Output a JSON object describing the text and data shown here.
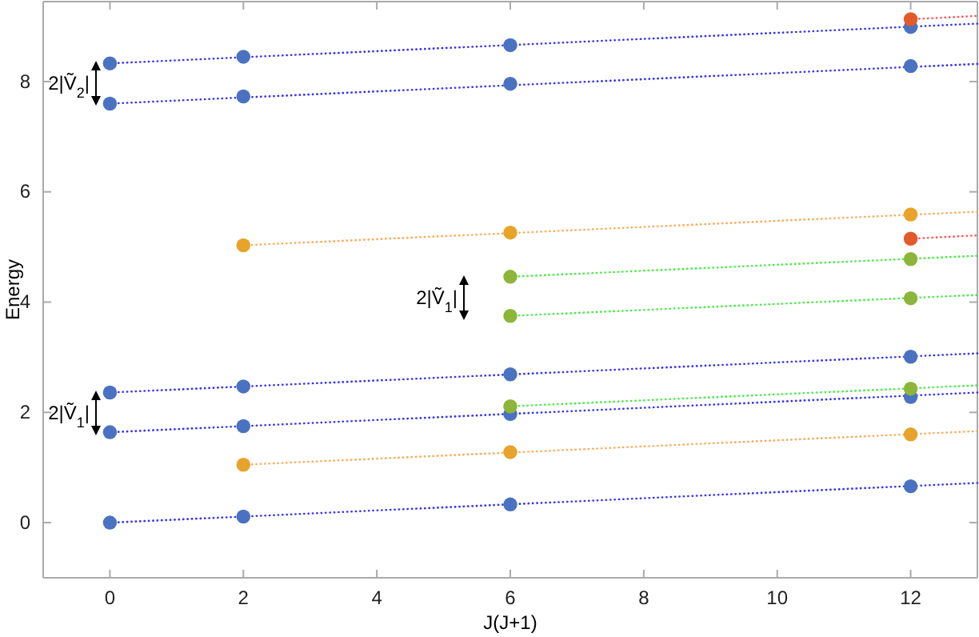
{
  "chart_data": {
    "type": "scatter",
    "xlabel": "J(J+1)",
    "ylabel": "Energy",
    "xlim": [
      -1,
      13
    ],
    "ylim": [
      -1,
      9.45
    ],
    "xticks": [
      0,
      2,
      4,
      6,
      8,
      10,
      12
    ],
    "yticks": [
      0,
      2,
      4,
      6,
      8
    ],
    "grid": false,
    "marker": "circle",
    "series": [
      {
        "type": "line",
        "color": "#3333ff",
        "x": [
          0,
          13
        ],
        "values": [
          0,
          0.72
        ],
        "marker": "none",
        "line_style": "dotted"
      },
      {
        "type": "line",
        "color": "#3333ff",
        "x": [
          0,
          13
        ],
        "values": [
          1.64,
          2.36
        ],
        "marker": "none",
        "line_style": "dotted"
      },
      {
        "type": "line",
        "color": "#3333ff",
        "x": [
          0,
          13
        ],
        "values": [
          2.36,
          3.07
        ],
        "marker": "none",
        "line_style": "dotted"
      },
      {
        "type": "line",
        "color": "#3333ff",
        "x": [
          0,
          13
        ],
        "values": [
          7.6,
          8.32
        ],
        "marker": "none",
        "line_style": "dotted"
      },
      {
        "type": "line",
        "color": "#3333ff",
        "x": [
          0,
          13
        ],
        "values": [
          8.33,
          9.05
        ],
        "marker": "none",
        "line_style": "dotted"
      },
      {
        "type": "line",
        "color": "#ffaa55",
        "x": [
          2,
          13
        ],
        "values": [
          1.05,
          1.66
        ],
        "marker": "none",
        "line_style": "dotted"
      },
      {
        "type": "line",
        "color": "#ffaa55",
        "x": [
          2,
          13
        ],
        "values": [
          5.03,
          5.64
        ],
        "marker": "none",
        "line_style": "dotted"
      },
      {
        "type": "line",
        "color": "#44ee44",
        "x": [
          6,
          13
        ],
        "values": [
          2.11,
          2.49
        ],
        "marker": "none",
        "line_style": "dotted"
      },
      {
        "type": "line",
        "color": "#44ee44",
        "x": [
          6,
          13
        ],
        "values": [
          3.75,
          4.13
        ],
        "marker": "none",
        "line_style": "dotted"
      },
      {
        "type": "line",
        "color": "#44ee44",
        "x": [
          6,
          13
        ],
        "values": [
          4.46,
          4.84
        ],
        "marker": "none",
        "line_style": "dotted"
      },
      {
        "type": "line",
        "color": "#ff5555",
        "x": [
          12,
          13
        ],
        "values": [
          5.15,
          5.21
        ],
        "marker": "none",
        "line_style": "dotted"
      },
      {
        "type": "line",
        "color": "#ff5555",
        "x": [
          12,
          13
        ],
        "values": [
          9.13,
          9.19
        ],
        "marker": "none",
        "line_style": "dotted"
      },
      {
        "color": "#4a72c0",
        "x": [
          0,
          2,
          6,
          12,
          0,
          2,
          6,
          12,
          0,
          2,
          6,
          12,
          0,
          2,
          6,
          12,
          0,
          2,
          6,
          12
        ],
        "values": [
          0,
          0.11,
          0.33,
          0.66,
          1.64,
          1.75,
          1.97,
          2.28,
          2.36,
          2.47,
          2.69,
          3.01,
          7.6,
          7.73,
          7.96,
          8.28,
          8.33,
          8.45,
          8.66,
          8.99
        ]
      },
      {
        "color": "#e8a32b",
        "x": [
          2,
          6,
          12,
          2,
          6,
          12
        ],
        "values": [
          1.05,
          1.28,
          1.6,
          5.03,
          5.26,
          5.59
        ]
      },
      {
        "color": "#8db53a",
        "x": [
          6,
          12,
          6,
          12,
          6,
          12
        ],
        "values": [
          2.11,
          2.43,
          3.75,
          4.07,
          4.46,
          4.78
        ]
      },
      {
        "color": "#e35a2a",
        "x": [
          12,
          12
        ],
        "values": [
          5.15,
          9.13
        ]
      }
    ],
    "annotations": [
      "2|Ṽ$_{2}$|",
      "2|Ṽ$_{1}$|",
      "2|Ṽ$_{1}$|"
    ]
  }
}
